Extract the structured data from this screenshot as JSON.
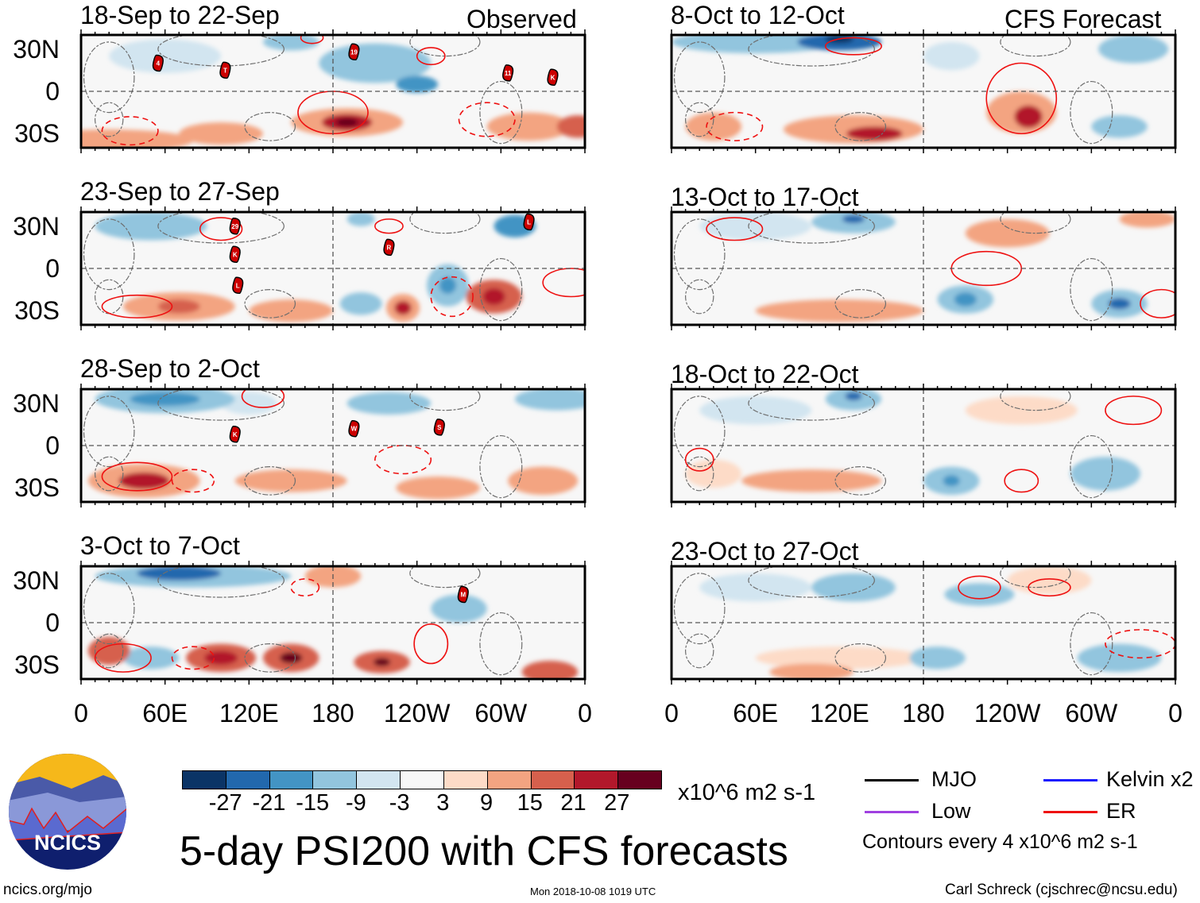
{
  "header": {
    "observed_label": "Observed",
    "forecast_label": "CFS Forecast"
  },
  "panels_observed": [
    {
      "title": "18-Sep to 22-Sep",
      "storms": [
        "4",
        "T",
        "19",
        "11",
        "K"
      ]
    },
    {
      "title": "23-Sep to 27-Sep",
      "storms": [
        "29",
        "K",
        "L",
        "R",
        "L"
      ]
    },
    {
      "title": "28-Sep to 2-Oct",
      "storms": [
        "K",
        "W",
        "S"
      ]
    },
    {
      "title": "3-Oct to 7-Oct",
      "storms": [
        "M"
      ]
    }
  ],
  "panels_forecast": [
    {
      "title": "8-Oct to 12-Oct"
    },
    {
      "title": "13-Oct to 17-Oct"
    },
    {
      "title": "18-Oct to 22-Oct"
    },
    {
      "title": "23-Oct to 27-Oct"
    }
  ],
  "chart_data": {
    "type": "heatmap",
    "title": "5-day PSI200 with CFS forecasts",
    "lat_ticks": [
      "30N",
      "0",
      "30S"
    ],
    "lon_ticks": [
      "0",
      "60E",
      "120E",
      "180",
      "120W",
      "60W",
      "0"
    ],
    "colorbar": {
      "ticks": [
        "-27",
        "-21",
        "-15",
        "-9",
        "-3",
        "3",
        "9",
        "15",
        "21",
        "27"
      ],
      "colors": [
        "#0b3466",
        "#2268ad",
        "#4394c4",
        "#92c5de",
        "#d2e5f0",
        "#f7f7f7",
        "#fddbc7",
        "#f3a481",
        "#d6604d",
        "#b2182b",
        "#67001f"
      ],
      "units": "x10^6 m2 s-1"
    },
    "legend": [
      {
        "label": "MJO",
        "color": "#000000"
      },
      {
        "label": "Kelvin x2",
        "color": "#1a1aff"
      },
      {
        "label": "Low",
        "color": "#a040e0"
      },
      {
        "label": "ER",
        "color": "#ee1111"
      }
    ],
    "contour_note": "Contours every 4 x10^6 m2 s-1"
  },
  "footer": {
    "left": "ncics.org/mjo",
    "center": "Mon 2018-10-08 1019 UTC",
    "right": "Carl Schreck (cjschrec@ncsu.edu)",
    "logo_text": "NCICS"
  }
}
